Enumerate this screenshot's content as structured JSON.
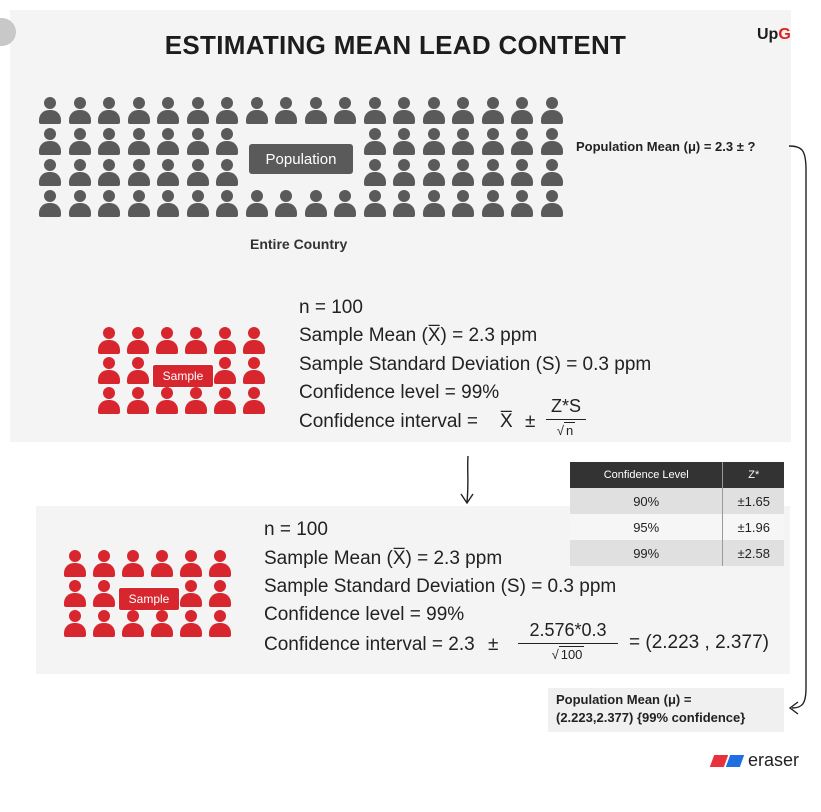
{
  "header": {
    "title": "ESTIMATING MEAN LEAD CONTENT",
    "brand_prefix": "Up",
    "brand_accent": "G"
  },
  "population": {
    "label": "Population",
    "caption": "Entire Country",
    "mean_text": "Population Mean (μ)  = 2.3 ± ?"
  },
  "sample_top": {
    "badge": "Sample",
    "n": "n = 100",
    "mean_line": "Sample Mean (X̅) = 2.3 ppm",
    "sd_line": "Sample Standard Deviation (S) =  0.3 ppm",
    "conf_level": "Confidence level = 99%",
    "ci_prefix": "Confidence interval =",
    "ci_xbar": "X̅",
    "pm": "±",
    "ci_num": "Z*S",
    "ci_den": "n"
  },
  "sample_bottom": {
    "badge": "Sample",
    "n": "n = 100",
    "mean_line": "Sample Mean (X̅) = 2.3 ppm",
    "sd_line": "Sample Standard Deviation (S) =  0.3 ppm",
    "conf_level": "Confidence level = 99%",
    "ci_prefix": "Confidence interval = 2.3",
    "pm": "±",
    "ci_num": "2.576*0.3",
    "ci_den": "100",
    "ci_result": "= (2.223 , 2.377)"
  },
  "z_table": {
    "headers": [
      "Confidence Level",
      "Z*"
    ],
    "rows": [
      [
        "90%",
        "±1.65"
      ],
      [
        "95%",
        "±1.96"
      ],
      [
        "99%",
        "±2.58"
      ]
    ]
  },
  "result": {
    "line1": "Population Mean (μ)  =",
    "line2": "(2.223,2.377) {99% confidence}"
  },
  "footer": {
    "brand": "eraser"
  },
  "colors": {
    "accent_red": "#d7262e",
    "grey_people": "#5a5a5a",
    "eraser_red": "#e8313a",
    "eraser_blue": "#1f6fe0"
  }
}
